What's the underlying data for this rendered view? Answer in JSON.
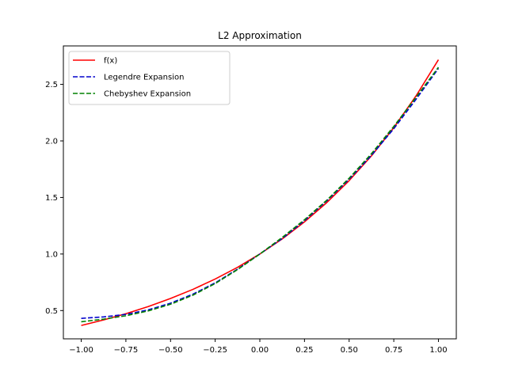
{
  "chart_data": {
    "type": "line",
    "title": "L2 Approximation",
    "xlabel": "",
    "ylabel": "",
    "xlim": [
      -1.1,
      1.1
    ],
    "ylim": [
      0.25,
      2.84
    ],
    "x_ticks": [
      -1.0,
      -0.75,
      -0.5,
      -0.25,
      0.0,
      0.25,
      0.5,
      0.75,
      1.0
    ],
    "x_tick_labels": [
      "−1.00",
      "−0.75",
      "−0.50",
      "−0.25",
      "0.00",
      "0.25",
      "0.50",
      "0.75",
      "1.00"
    ],
    "y_ticks": [
      0.5,
      1.0,
      1.5,
      2.0,
      2.5
    ],
    "y_tick_labels": [
      "0.5",
      "1.0",
      "1.5",
      "2.0",
      "2.5"
    ],
    "grid": false,
    "legend_position": "top-left",
    "x": [
      -1.0,
      -0.875,
      -0.75,
      -0.625,
      -0.5,
      -0.375,
      -0.25,
      -0.125,
      0.0,
      0.125,
      0.25,
      0.375,
      0.5,
      0.625,
      0.75,
      0.875,
      1.0
    ],
    "series": [
      {
        "name": "f(x)",
        "color": "#ff0000",
        "style": "solid",
        "values": [
          0.368,
          0.417,
          0.472,
          0.535,
          0.607,
          0.687,
          0.779,
          0.882,
          1.0,
          1.133,
          1.284,
          1.455,
          1.649,
          1.868,
          2.117,
          2.399,
          2.718
        ]
      },
      {
        "name": "Legendre Expansion",
        "color": "#0000cc",
        "style": "dashed",
        "values": [
          0.431,
          0.444,
          0.466,
          0.506,
          0.565,
          0.645,
          0.745,
          0.866,
          1.0,
          1.137,
          1.295,
          1.47,
          1.662,
          1.873,
          2.108,
          2.369,
          2.641
        ]
      },
      {
        "name": "Chebyshev Expansion",
        "color": "#008000",
        "style": "dashed",
        "values": [
          0.401,
          0.424,
          0.454,
          0.497,
          0.556,
          0.636,
          0.739,
          0.862,
          1.0,
          1.146,
          1.303,
          1.476,
          1.67,
          1.887,
          2.128,
          2.387,
          2.651
        ]
      }
    ]
  }
}
